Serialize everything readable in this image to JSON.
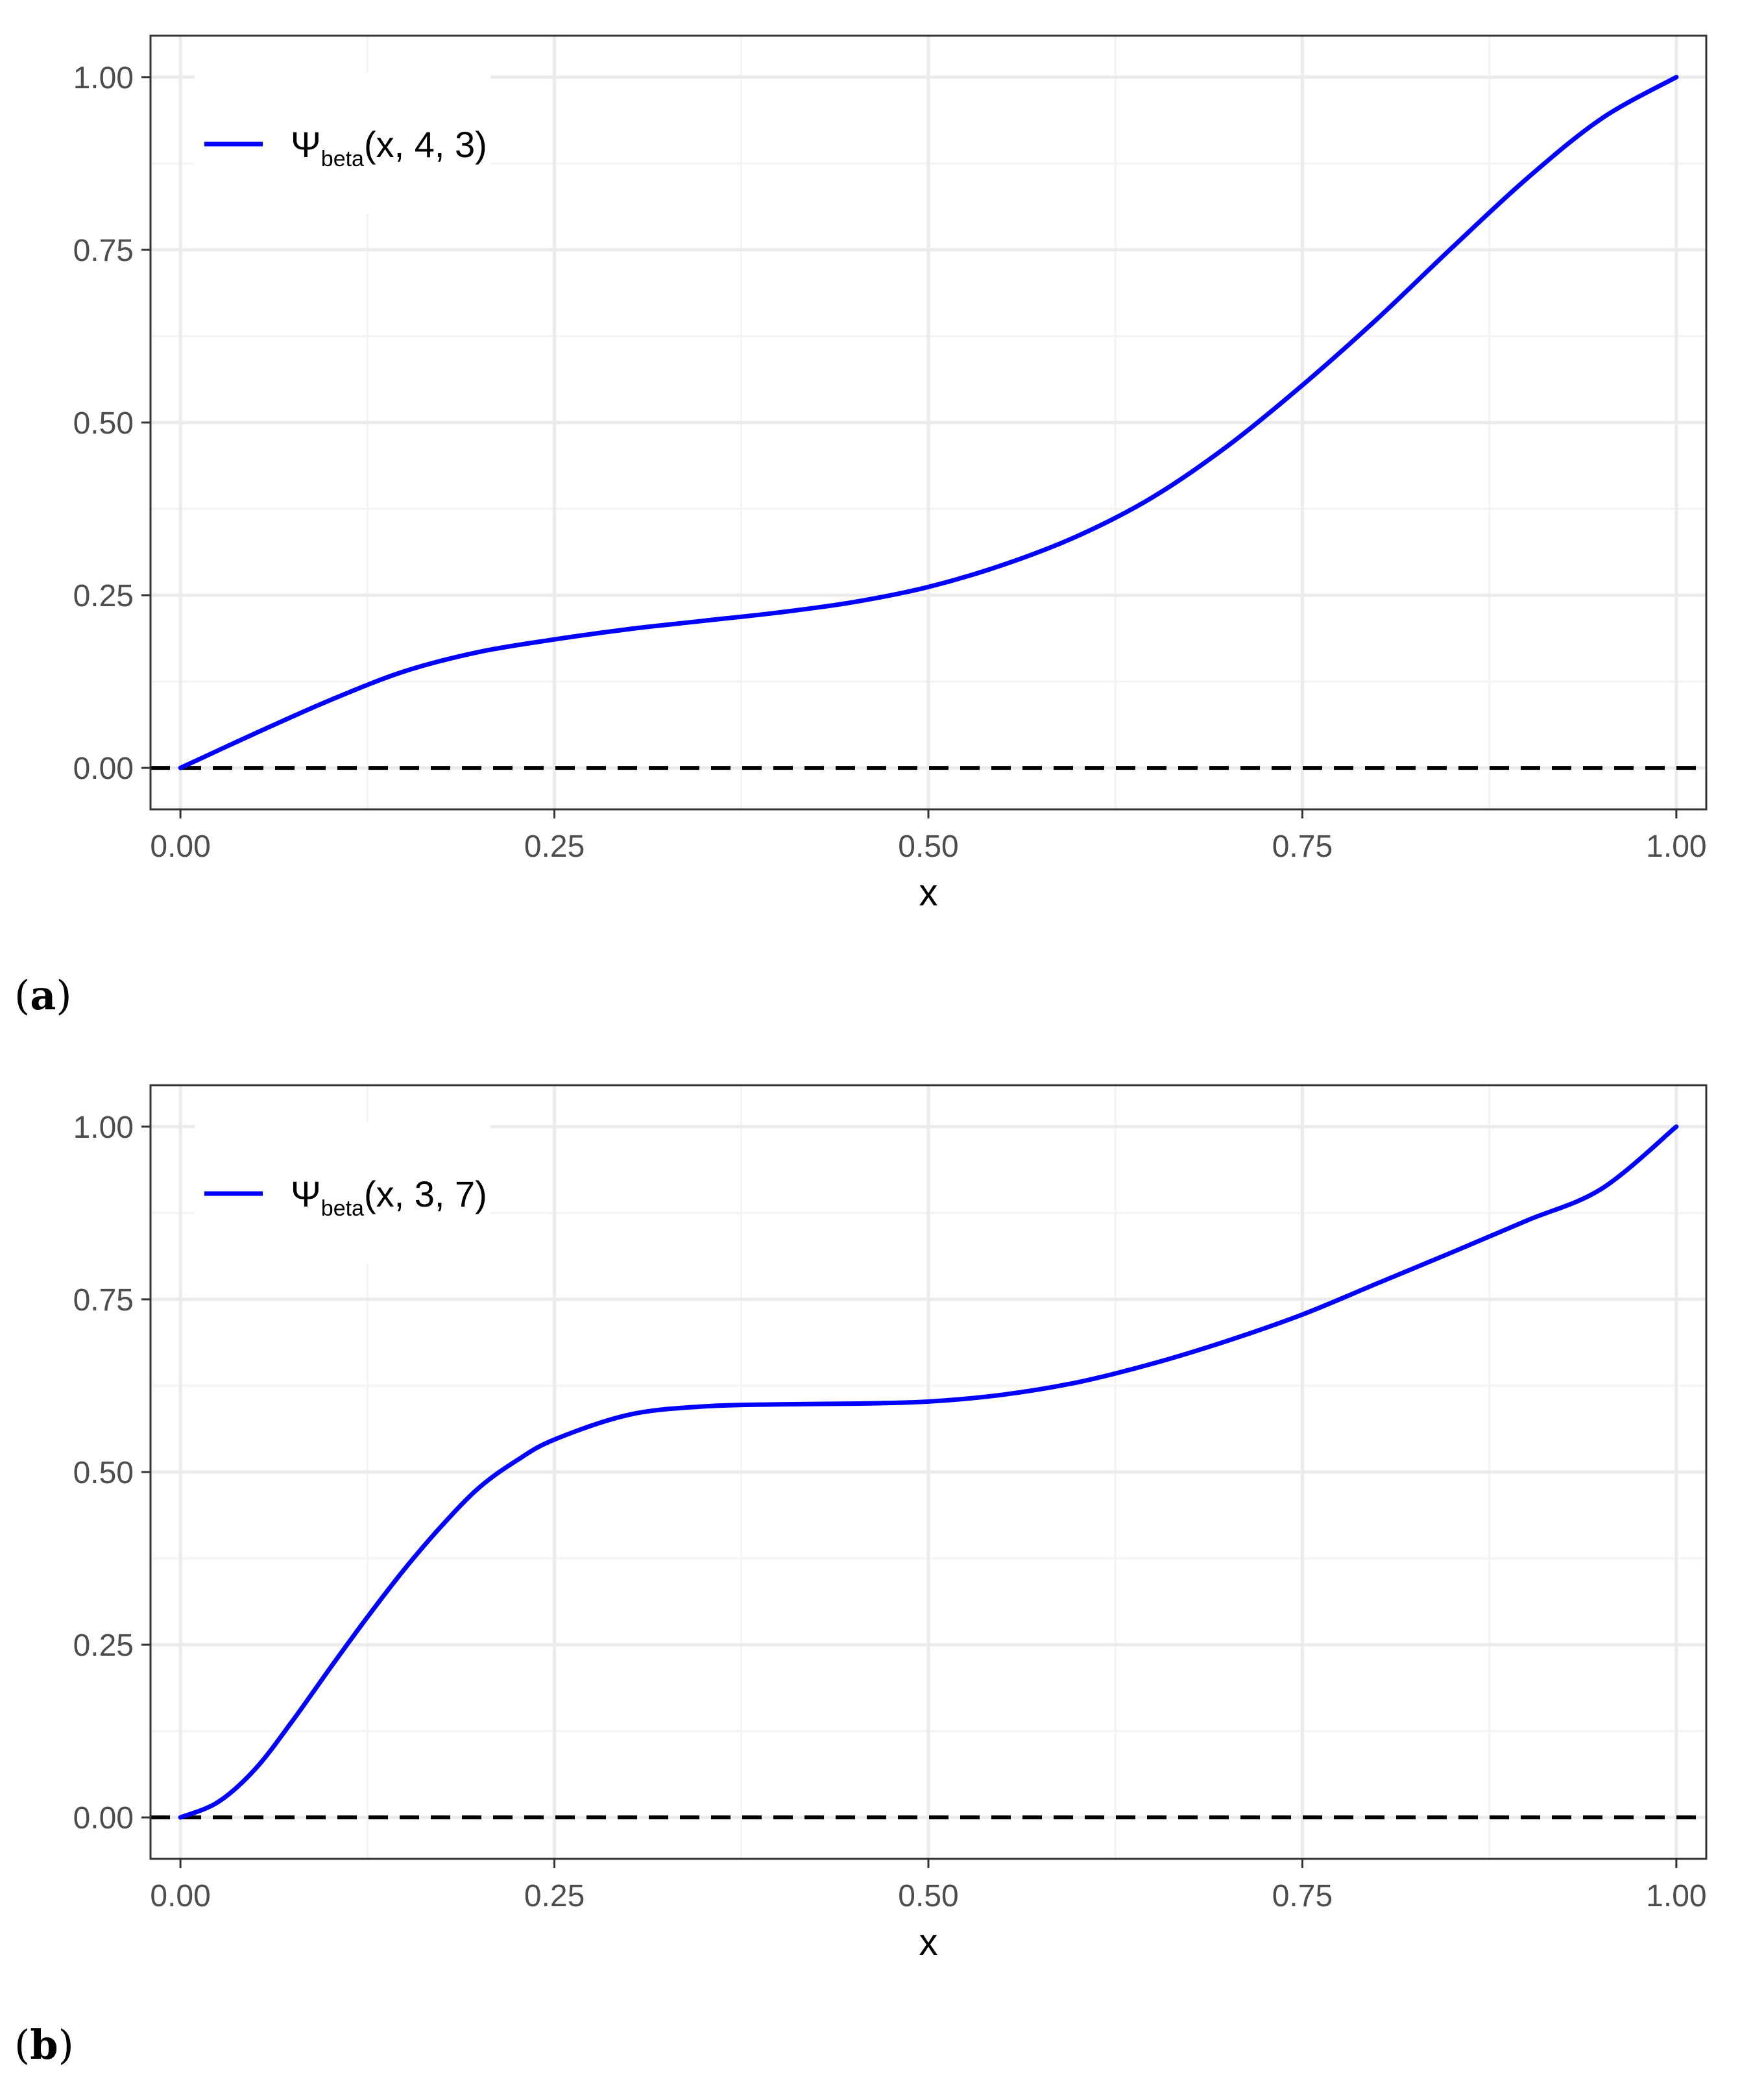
{
  "colors": {
    "curve": "#0000ff",
    "reference_line": "#000000",
    "grid_major": "#ebebeb",
    "grid_minor": "#f3f3f3",
    "panel_border": "#333333",
    "tick_text": "#4d4d4d"
  },
  "chart_data": [
    {
      "type": "line",
      "panel_label": "a",
      "xlabel": "x",
      "ylabel": "",
      "xlim": [
        -0.02,
        1.02
      ],
      "ylim": [
        -0.06,
        1.06
      ],
      "x_ticks": [
        0,
        0.25,
        0.5,
        0.75,
        1.0
      ],
      "x_tick_labels": [
        "0.00",
        "0.25",
        "0.50",
        "0.75",
        "1.00"
      ],
      "y_ticks": [
        0,
        0.25,
        0.5,
        0.75,
        1.0
      ],
      "y_tick_labels": [
        "0.00",
        "0.25",
        "0.50",
        "0.75",
        "1.00"
      ],
      "grid": true,
      "legend_position": "top-left",
      "legend": {
        "symbol": "Ψ",
        "subscript": "beta",
        "args": "(x, 4, 3)"
      },
      "reference_line": {
        "y": 0,
        "style": "dashed"
      },
      "series": [
        {
          "name": "Ψbeta(x, 4, 3)",
          "x": [
            0,
            0.05,
            0.1,
            0.15,
            0.2,
            0.25,
            0.3,
            0.35,
            0.4,
            0.45,
            0.5,
            0.55,
            0.6,
            0.65,
            0.7,
            0.75,
            0.8,
            0.85,
            0.9,
            0.95,
            1.0
          ],
          "y": [
            0.0,
            0.05,
            0.098,
            0.14,
            0.168,
            0.186,
            0.201,
            0.213,
            0.225,
            0.24,
            0.262,
            0.294,
            0.336,
            0.392,
            0.466,
            0.554,
            0.65,
            0.753,
            0.853,
            0.94,
            1.0
          ]
        }
      ]
    },
    {
      "type": "line",
      "panel_label": "b",
      "xlabel": "x",
      "ylabel": "",
      "xlim": [
        -0.02,
        1.02
      ],
      "ylim": [
        -0.06,
        1.06
      ],
      "x_ticks": [
        0,
        0.25,
        0.5,
        0.75,
        1.0
      ],
      "x_tick_labels": [
        "0.00",
        "0.25",
        "0.50",
        "0.75",
        "1.00"
      ],
      "y_ticks": [
        0,
        0.25,
        0.5,
        0.75,
        1.0
      ],
      "y_tick_labels": [
        "0.00",
        "0.25",
        "0.50",
        "0.75",
        "1.00"
      ],
      "grid": true,
      "legend_position": "top-left",
      "legend": {
        "symbol": "Ψ",
        "subscript": "beta",
        "args": "(x, 3, 7)"
      },
      "reference_line": {
        "y": 0,
        "style": "dashed"
      },
      "series": [
        {
          "name": "Ψbeta(x, 3, 7)",
          "x": [
            0,
            0.025,
            0.05,
            0.075,
            0.1,
            0.125,
            0.15,
            0.175,
            0.2,
            0.225,
            0.25,
            0.3,
            0.35,
            0.4,
            0.45,
            0.5,
            0.55,
            0.6,
            0.65,
            0.7,
            0.75,
            0.8,
            0.85,
            0.9,
            0.95,
            1.0
          ],
          "y": [
            0.0,
            0.022,
            0.07,
            0.14,
            0.216,
            0.29,
            0.36,
            0.423,
            0.478,
            0.517,
            0.547,
            0.583,
            0.595,
            0.598,
            0.599,
            0.602,
            0.612,
            0.63,
            0.657,
            0.69,
            0.728,
            0.773,
            0.818,
            0.864,
            0.91,
            1.0
          ]
        }
      ]
    }
  ]
}
